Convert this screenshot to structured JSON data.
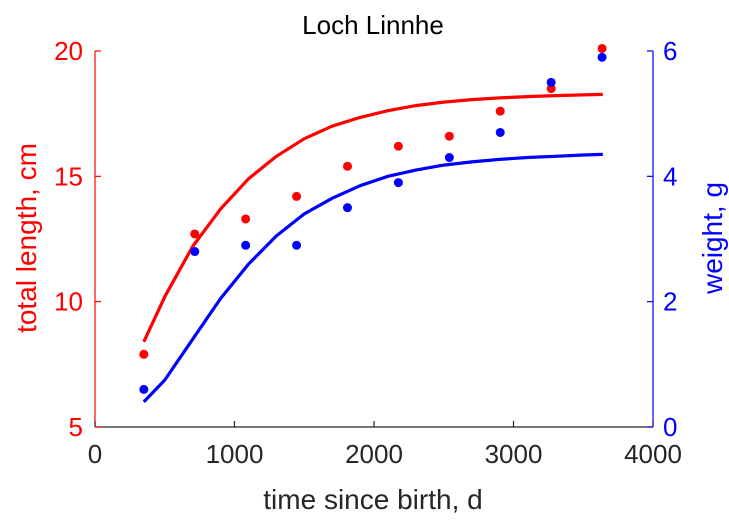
{
  "colors": {
    "length": "#ff0000",
    "weight": "#0000ff",
    "axis": "#262626"
  },
  "chart_data": {
    "type": "scatter",
    "title": "Loch Linnhe",
    "xlabel": "time since birth, d",
    "ylabel_left": "total length, cm",
    "ylabel_right": "weight, g",
    "xlim": [
      0,
      4000
    ],
    "ylim_left": [
      5,
      20
    ],
    "ylim_right": [
      0,
      6
    ],
    "xticks": [
      0,
      1000,
      2000,
      3000,
      4000
    ],
    "yticks_left": [
      5,
      10,
      15,
      20
    ],
    "yticks_right": [
      0,
      2,
      4,
      6
    ],
    "grid": false,
    "series": [
      {
        "axis": "left",
        "kind": "points",
        "color": "#ff0000",
        "x": [
          350,
          715,
          1080,
          1445,
          1810,
          2175,
          2540,
          2905,
          3270,
          3635
        ],
        "y": [
          7.9,
          12.7,
          13.3,
          14.2,
          15.4,
          16.2,
          16.6,
          17.6,
          18.5,
          20.1
        ]
      },
      {
        "axis": "right",
        "kind": "points",
        "color": "#0000ff",
        "x": [
          350,
          715,
          1080,
          1445,
          1810,
          2175,
          2540,
          2905,
          3270,
          3635
        ],
        "y": [
          0.6,
          2.8,
          2.9,
          2.9,
          3.5,
          3.9,
          4.3,
          4.7,
          5.5,
          5.9
        ]
      },
      {
        "axis": "left",
        "kind": "line",
        "color": "#ff0000",
        "x": [
          350,
          500,
          700,
          900,
          1100,
          1300,
          1500,
          1700,
          1900,
          2100,
          2300,
          2500,
          2700,
          2900,
          3100,
          3300,
          3500,
          3640
        ],
        "y": [
          8.4,
          10.2,
          12.2,
          13.7,
          14.9,
          15.8,
          16.5,
          17.0,
          17.35,
          17.62,
          17.82,
          17.96,
          18.06,
          18.13,
          18.18,
          18.22,
          18.25,
          18.27
        ]
      },
      {
        "axis": "right",
        "kind": "line",
        "color": "#0000ff",
        "x": [
          350,
          500,
          700,
          900,
          1100,
          1300,
          1500,
          1700,
          1900,
          2100,
          2300,
          2500,
          2700,
          2900,
          3100,
          3300,
          3500,
          3640
        ],
        "y": [
          0.4,
          0.75,
          1.4,
          2.05,
          2.6,
          3.05,
          3.4,
          3.65,
          3.85,
          4.0,
          4.1,
          4.18,
          4.23,
          4.27,
          4.3,
          4.32,
          4.34,
          4.35
        ]
      }
    ]
  }
}
